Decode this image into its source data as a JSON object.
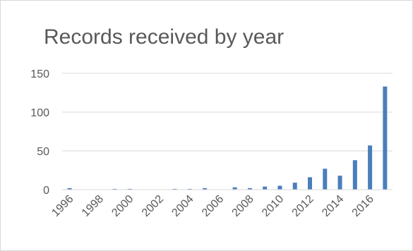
{
  "chart_data": {
    "type": "bar",
    "title": "Records received by year",
    "xlabel": "",
    "ylabel": "",
    "ylim": [
      0,
      150
    ],
    "y_ticks": [
      0,
      50,
      100,
      150
    ],
    "grid": true,
    "legend": "none",
    "bar_color": "#4a7ebb",
    "categories": [
      "1996",
      "1997",
      "1998",
      "1999",
      "2000",
      "2001",
      "2002",
      "2003",
      "2004",
      "2005",
      "2006",
      "2007",
      "2008",
      "2009",
      "2010",
      "2011",
      "2012",
      "2013",
      "2014",
      "2015",
      "2016",
      "2017"
    ],
    "x_tick_labels": [
      "1996",
      "1998",
      "2000",
      "2002",
      "2004",
      "2006",
      "2008",
      "2010",
      "2012",
      "2014",
      "2016"
    ],
    "values": [
      2,
      0,
      0,
      1,
      1,
      0,
      0,
      1,
      1,
      2,
      0,
      3,
      2,
      4,
      5,
      9,
      16,
      27,
      18,
      38,
      57,
      133
    ]
  }
}
